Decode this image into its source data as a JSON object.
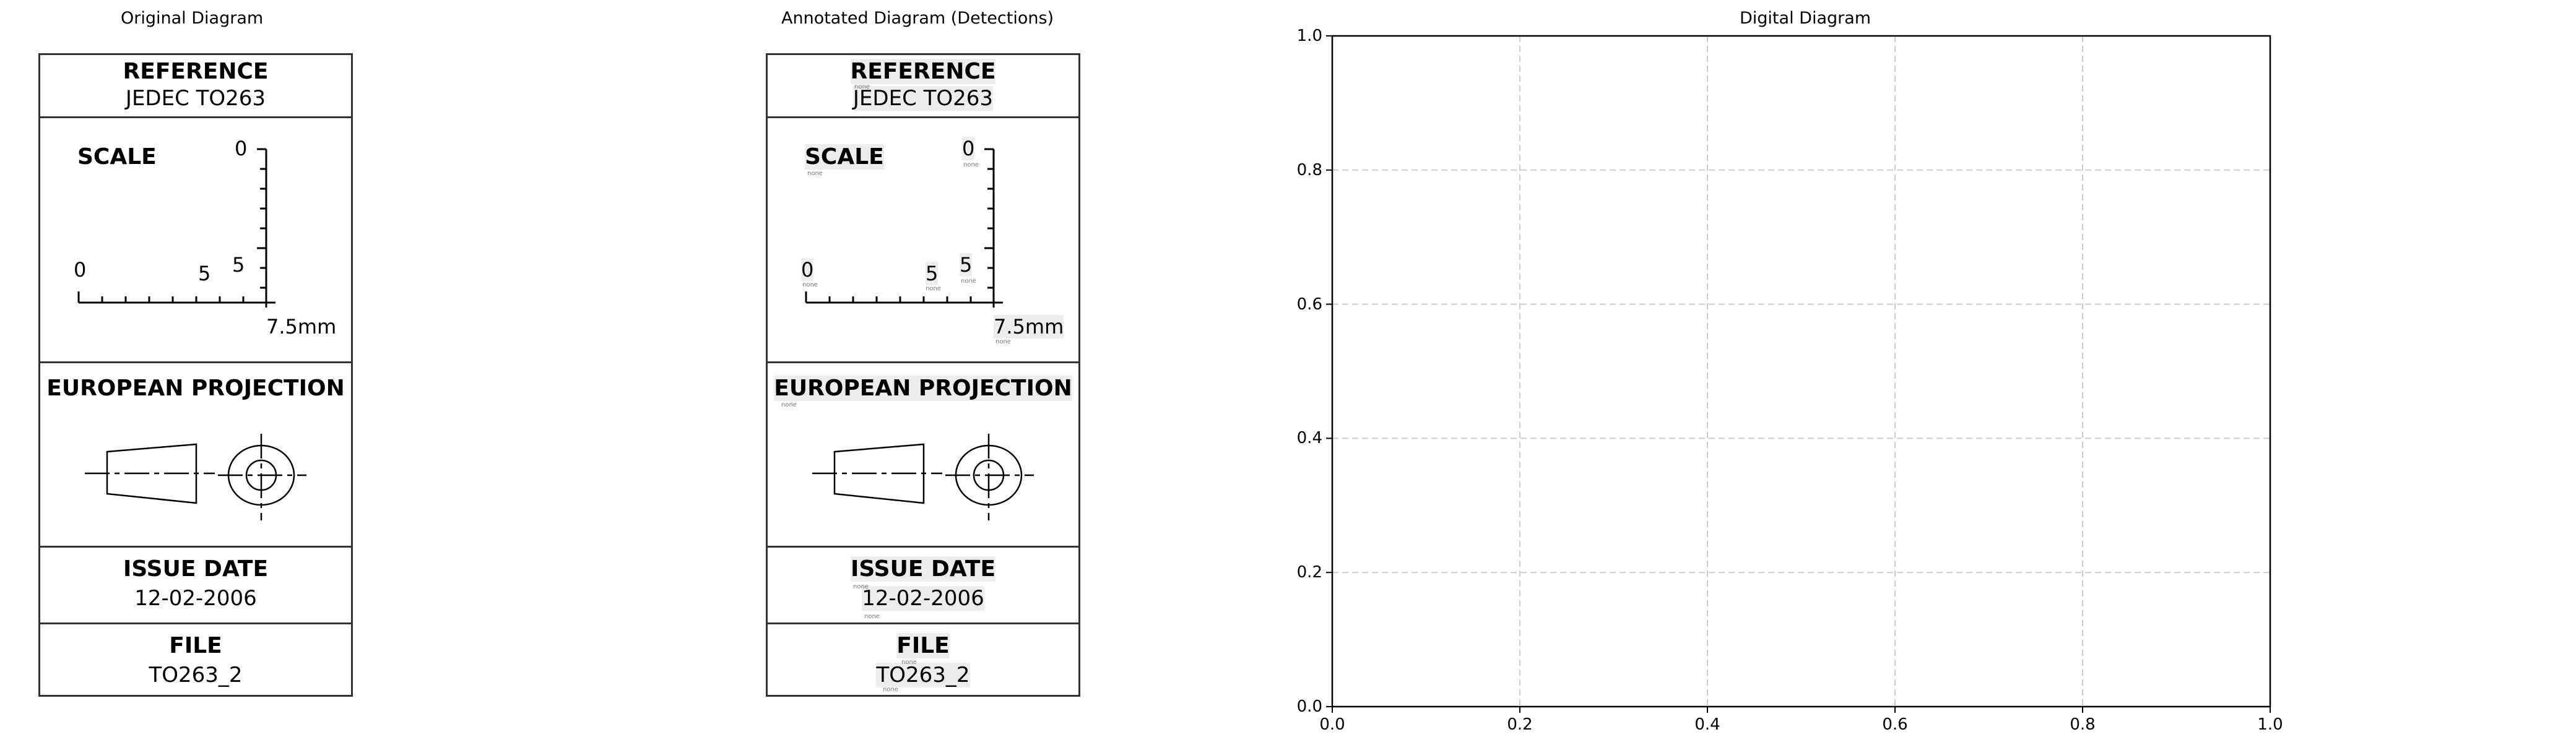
{
  "panels": {
    "original_title": "Original Diagram",
    "annotated_title": "Annotated Diagram (Detections)",
    "digital_title": "Digital Diagram"
  },
  "title_block": {
    "reference_label": "REFERENCE",
    "reference_value": "JEDEC TO263",
    "scale_label": "SCALE",
    "scale_ticks": {
      "top_zero": "0",
      "left_zero": "0",
      "middle_five": "5",
      "right_five": "5"
    },
    "scale_unit": "7.5mm",
    "projection_label": "EUROPEAN PROJECTION",
    "issue_label": "ISSUE DATE",
    "issue_value": "12-02-2006",
    "file_label": "FILE",
    "file_value": "TO263_2"
  },
  "detection_tag": "none",
  "chart_data": {
    "type": "scatter",
    "title": "Digital Diagram",
    "series": [],
    "xlim": [
      0.0,
      1.0
    ],
    "ylim": [
      0.0,
      1.0
    ],
    "xticks": [
      "0.0",
      "0.2",
      "0.4",
      "0.6",
      "0.8",
      "1.0"
    ],
    "yticks": [
      "0.0",
      "0.2",
      "0.4",
      "0.6",
      "0.8",
      "1.0"
    ],
    "grid": true,
    "grid_style": "dashed",
    "grid_color": "#cccccc"
  }
}
